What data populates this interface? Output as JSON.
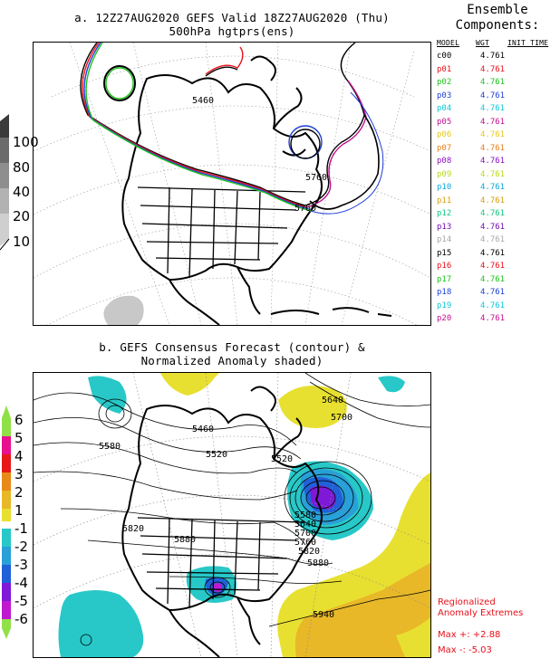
{
  "panel_a": {
    "title_line1": "a. 12Z27AUG2020 GEFS Valid 18Z27AUG2020 (Thu)",
    "title_line2": "500hPa hgtprs(ens)",
    "contour_labels": [
      "5460",
      "5760",
      "5760"
    ],
    "spread_legend": {
      "levels": [
        "100",
        "80",
        "40",
        "20",
        "10"
      ],
      "colors": [
        "#3a3a3a",
        "#6b6b6b",
        "#8e8e8e",
        "#b2b2b2",
        "#cfcfcf"
      ]
    }
  },
  "components": {
    "title_line1": "Ensemble",
    "title_line2": "Components:",
    "headers": {
      "model": "MODEL",
      "wgt": "WGT",
      "init": "INIT TIME"
    },
    "rows": [
      {
        "model": "c00",
        "wgt": "4.761",
        "color": "#000000"
      },
      {
        "model": "p01",
        "wgt": "4.761",
        "color": "#e8101a"
      },
      {
        "model": "p02",
        "wgt": "4.761",
        "color": "#1fc21f"
      },
      {
        "model": "p03",
        "wgt": "4.761",
        "color": "#1f3fd6"
      },
      {
        "model": "p04",
        "wgt": "4.761",
        "color": "#10c8d8"
      },
      {
        "model": "p05",
        "wgt": "4.761",
        "color": "#c2108e"
      },
      {
        "model": "p06",
        "wgt": "4.761",
        "color": "#e6c81a"
      },
      {
        "model": "p07",
        "wgt": "4.761",
        "color": "#e6801a"
      },
      {
        "model": "p08",
        "wgt": "4.761",
        "color": "#8a10c2"
      },
      {
        "model": "p09",
        "wgt": "4.761",
        "color": "#b8d81a"
      },
      {
        "model": "p10",
        "wgt": "4.761",
        "color": "#10a8d8"
      },
      {
        "model": "p11",
        "wgt": "4.761",
        "color": "#d8a010"
      },
      {
        "model": "p12",
        "wgt": "4.761",
        "color": "#10c880"
      },
      {
        "model": "p13",
        "wgt": "4.761",
        "color": "#7010b0"
      },
      {
        "model": "p14",
        "wgt": "4.761",
        "color": "#a8a8a8"
      },
      {
        "model": "p15",
        "wgt": "4.761",
        "color": "#000000"
      },
      {
        "model": "p16",
        "wgt": "4.761",
        "color": "#e8101a"
      },
      {
        "model": "p17",
        "wgt": "4.761",
        "color": "#1fc21f"
      },
      {
        "model": "p18",
        "wgt": "4.761",
        "color": "#1f3fd6"
      },
      {
        "model": "p19",
        "wgt": "4.761",
        "color": "#10c8d8"
      },
      {
        "model": "p20",
        "wgt": "4.761",
        "color": "#c2108e"
      }
    ]
  },
  "panel_b": {
    "title_line1": "b. GEFS Consensus Forecast (contour) &",
    "title_line2": "Normalized Anomaly shaded)",
    "contour_labels": [
      "5640",
      "5700",
      "5460",
      "5580",
      "5520",
      "5520",
      "5580",
      "5640",
      "5700",
      "5760",
      "5820",
      "5820",
      "5880",
      "5880",
      "5940"
    ],
    "anomaly_legend": {
      "positive_labels": [
        "6",
        "5",
        "4",
        "3",
        "2",
        "1"
      ],
      "negative_labels": [
        "-1",
        "-2",
        "-3",
        "-4",
        "-5",
        "-6"
      ],
      "positive_colors": [
        "#90e048",
        "#e8108e",
        "#e81818",
        "#e88a18",
        "#e8b828",
        "#e8e030"
      ],
      "negative_colors": [
        "#28c8c8",
        "#28a0d8",
        "#2060d8",
        "#8018d8",
        "#c018d0",
        "#90e048"
      ]
    },
    "extremes": {
      "title_line1": "Regionalized",
      "title_line2": "Anomaly Extremes",
      "max_pos": "Max +:  +2.88",
      "max_neg": "Max -:  -5.03"
    }
  }
}
